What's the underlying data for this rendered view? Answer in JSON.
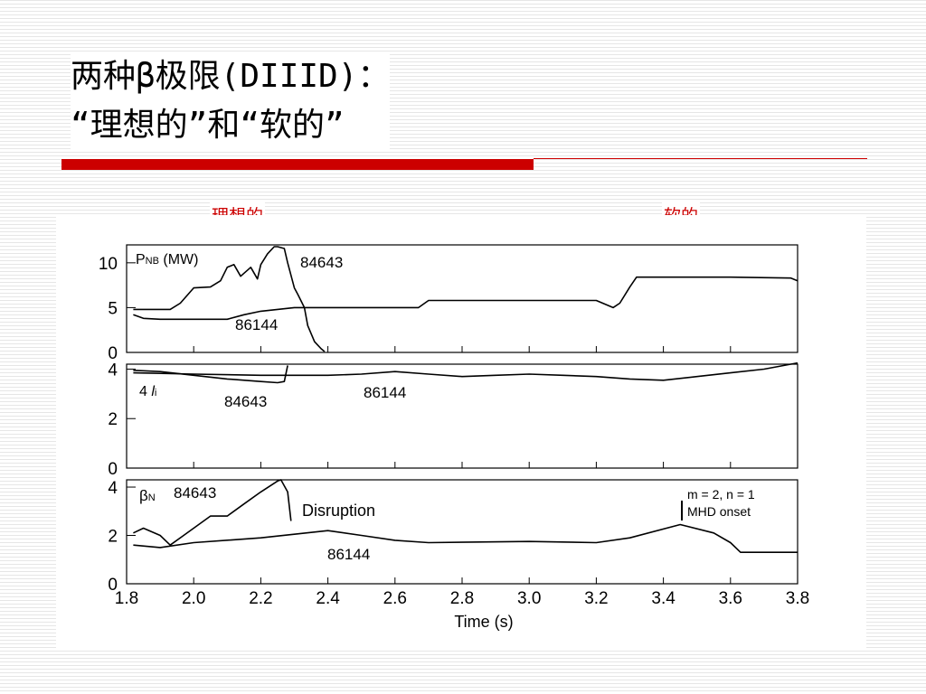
{
  "title": {
    "line1": "两种β极限(DIIID)：",
    "line2": "“理想的”和“软的”"
  },
  "captions": {
    "left": "理想的",
    "right": "软的"
  },
  "colors": {
    "accent": "#cc0000",
    "ink": "#000000"
  },
  "chart_data": [
    {
      "type": "line",
      "panel": "top",
      "label": "PNB (MW)",
      "xlim": [
        1.8,
        3.8
      ],
      "ylim": [
        0,
        12
      ],
      "y_ticks": [
        "0",
        "5",
        "10"
      ],
      "series": [
        {
          "name": "84643",
          "x": [
            1.82,
            1.93,
            1.96,
            2.0,
            2.05,
            2.08,
            2.1,
            2.12,
            2.14,
            2.17,
            2.19,
            2.2,
            2.22,
            2.24,
            2.25,
            2.27,
            2.28,
            2.3,
            2.31,
            2.33,
            2.34,
            2.36,
            2.38,
            2.39
          ],
          "y": [
            4.8,
            4.8,
            5.5,
            7.2,
            7.3,
            8.0,
            9.5,
            9.8,
            8.5,
            9.5,
            8.2,
            9.8,
            11,
            11.8,
            11.8,
            11.6,
            10,
            7.2,
            6.5,
            5,
            3,
            1.2,
            0.4,
            0.1
          ]
        },
        {
          "name": "86144",
          "x": [
            1.82,
            1.85,
            1.9,
            2.0,
            2.1,
            2.15,
            2.2,
            2.3,
            2.5,
            2.67,
            2.7,
            2.8,
            3.0,
            3.2,
            3.25,
            3.27,
            3.3,
            3.32,
            3.4,
            3.6,
            3.78,
            3.8
          ],
          "y": [
            4.2,
            3.8,
            3.7,
            3.7,
            3.7,
            4.2,
            4.6,
            5.0,
            5.0,
            5.0,
            5.8,
            5.8,
            5.8,
            5.8,
            5.0,
            5.5,
            7.3,
            8.4,
            8.4,
            8.4,
            8.3,
            8.0
          ]
        }
      ]
    },
    {
      "type": "line",
      "panel": "middle",
      "label": "4 li",
      "xlim": [
        1.8,
        3.8
      ],
      "ylim": [
        0,
        4.2
      ],
      "y_ticks": [
        "0",
        "2",
        "4"
      ],
      "series": [
        {
          "name": "84643",
          "x": [
            1.82,
            1.9,
            2.0,
            2.1,
            2.2,
            2.25,
            2.27,
            2.28
          ],
          "y": [
            3.95,
            3.9,
            3.75,
            3.6,
            3.5,
            3.45,
            3.5,
            4.15
          ]
        },
        {
          "name": "86144",
          "x": [
            1.82,
            2.0,
            2.2,
            2.4,
            2.5,
            2.6,
            2.7,
            2.8,
            2.9,
            3.0,
            3.1,
            3.2,
            3.3,
            3.4,
            3.5,
            3.6,
            3.7,
            3.8
          ],
          "y": [
            3.85,
            3.8,
            3.75,
            3.75,
            3.8,
            3.9,
            3.8,
            3.7,
            3.75,
            3.8,
            3.75,
            3.7,
            3.6,
            3.55,
            3.7,
            3.85,
            4.0,
            4.25
          ]
        }
      ]
    },
    {
      "type": "line",
      "panel": "bottom",
      "label": "βN",
      "xlim": [
        1.8,
        3.8
      ],
      "ylim": [
        0,
        4.3
      ],
      "y_ticks": [
        "0",
        "2",
        "4"
      ],
      "x_ticks": [
        "1.8",
        "2.0",
        "2.2",
        "2.4",
        "2.6",
        "2.8",
        "3.0",
        "3.2",
        "3.4",
        "3.6",
        "3.8"
      ],
      "xlabel": "Time (s)",
      "series": [
        {
          "name": "84643",
          "x": [
            1.82,
            1.85,
            1.9,
            1.93,
            1.97,
            2.05,
            2.1,
            2.15,
            2.2,
            2.25,
            2.26,
            2.28,
            2.29
          ],
          "y": [
            2.1,
            2.3,
            2.0,
            1.6,
            2.0,
            2.8,
            2.8,
            3.3,
            3.8,
            4.25,
            4.3,
            3.8,
            2.6
          ]
        },
        {
          "name": "86144",
          "x": [
            1.82,
            1.9,
            2.0,
            2.2,
            2.4,
            2.5,
            2.6,
            2.7,
            3.0,
            3.2,
            3.3,
            3.45,
            3.55,
            3.6,
            3.63,
            3.8
          ],
          "y": [
            1.6,
            1.5,
            1.7,
            1.9,
            2.2,
            2.0,
            1.8,
            1.7,
            1.75,
            1.7,
            1.9,
            2.45,
            2.1,
            1.7,
            1.3,
            1.3
          ]
        }
      ]
    }
  ],
  "annotations": {
    "p1_label_prefix": "P",
    "p1_label_sub": "NB",
    "p1_label_suffix": " (MW)",
    "p1_shot_a": "84643",
    "p1_shot_b": "86144",
    "p2_label_prefix": "4 ",
    "p2_label_l": "l",
    "p2_label_sub": "i",
    "p2_shot_a": "84643",
    "p2_shot_b": "86144",
    "p3_label_prefix": "β",
    "p3_label_sub": "N",
    "p3_shot_a": "84643",
    "p3_shot_b": "86144",
    "disruption": "Disruption",
    "mode_line1": "m = 2, n = 1",
    "mode_line2": "MHD onset"
  }
}
